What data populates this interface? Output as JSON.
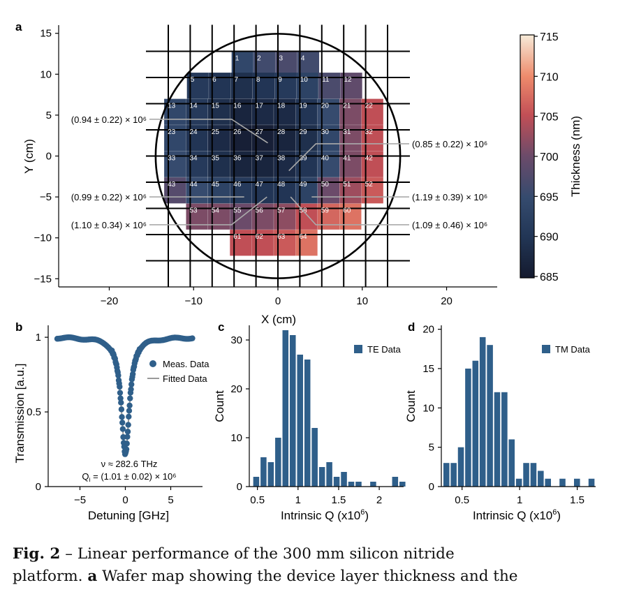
{
  "panel_labels": {
    "a": "a",
    "b": "b",
    "c": "c",
    "d": "d"
  },
  "caption": {
    "fig_label": "Fig. 2",
    "line1_rest": " – Linear performance of the 300 mm silicon nitride",
    "line2_pre": "platform. ",
    "line2_bold": "a",
    "line2_rest": " Wafer map showing the device layer thickness and the"
  },
  "colors": {
    "bar": "#2f5f8a",
    "fit_line": "#999999",
    "dots": "#2f5f8a"
  },
  "chart_data": [
    {
      "id": "a",
      "type": "heatmap",
      "xlabel": "X (cm)",
      "ylabel": "Y (cm)",
      "xlim": [
        -26,
        26
      ],
      "ylim": [
        -16,
        16
      ],
      "xticks": [
        -20,
        -10,
        0,
        10,
        20
      ],
      "yticks": [
        -15,
        -10,
        -5,
        0,
        5,
        10,
        15
      ],
      "xtick_labels": [
        "−20",
        "−10",
        "0",
        "10",
        "20"
      ],
      "ytick_labels": [
        "−15",
        "−10",
        "−5",
        "0",
        "5",
        "10",
        "15"
      ],
      "wafer_radius_cm": 14.5,
      "grid_x_cm": [
        -13,
        -10.4,
        -7.8,
        -5.2,
        -2.6,
        0,
        2.6,
        5.2,
        7.8,
        10.4,
        13
      ],
      "grid_y_cm": [
        12.8,
        9.6,
        6.4,
        3.2,
        0,
        -3.2,
        -6.4,
        -9.6,
        -12.8
      ],
      "colorbar": {
        "label": "Thickness (nm)",
        "min": 685,
        "max": 715,
        "ticks": [
          "715",
          "710",
          "705",
          "700",
          "695",
          "690",
          "685"
        ]
      },
      "rows": [
        {
          "y": 11.2,
          "xs": [
            -4.2,
            -1.6,
            1,
            3.6
          ],
          "start": 1,
          "values": [
            694,
            696,
            697,
            696
          ]
        },
        {
          "y": 8.6,
          "xs": [
            -9.5,
            -6.9,
            -4.3,
            -1.7,
            0.9,
            3.5,
            6.1,
            8.7
          ],
          "start": 5,
          "values": [
            691,
            690,
            689,
            690,
            691,
            693,
            697,
            699
          ]
        },
        {
          "y": 5.4,
          "xs": [
            -12.2,
            -9.6,
            -7,
            -4.4,
            -1.8,
            0.8,
            3.4,
            6,
            8.6,
            11.2
          ],
          "start": 13,
          "values": [
            694,
            691,
            689,
            687,
            688,
            688,
            690,
            695,
            701,
            705
          ]
        },
        {
          "y": 2.2,
          "xs": [
            -12.2,
            -9.6,
            -7,
            -4.4,
            -1.8,
            0.8,
            3.4,
            6,
            8.6,
            11.2
          ],
          "start": 23,
          "values": [
            694,
            690,
            688,
            686,
            686,
            687,
            689,
            694,
            701,
            705
          ]
        },
        {
          "y": -1,
          "xs": [
            -12.2,
            -9.6,
            -7,
            -4.4,
            -1.8,
            0.8,
            3.4,
            6,
            8.6,
            11.2
          ],
          "start": 33,
          "values": [
            695,
            691,
            689,
            687,
            687,
            688,
            690,
            695,
            701,
            705
          ]
        },
        {
          "y": -4.2,
          "xs": [
            -12.2,
            -9.6,
            -7,
            -4.4,
            -1.8,
            0.8,
            3.4,
            6,
            8.6,
            11.2
          ],
          "start": 43,
          "values": [
            698,
            695,
            693,
            691,
            690,
            690,
            693,
            700,
            703,
            706
          ]
        },
        {
          "y": -7.4,
          "xs": [
            -9.6,
            -7,
            -4.4,
            -1.8,
            0.8,
            3.4,
            6,
            8.6
          ],
          "start": 53,
          "values": [
            701,
            701,
            700,
            701,
            702,
            705,
            707,
            708
          ]
        },
        {
          "y": -10.6,
          "xs": [
            -4.4,
            -1.8,
            0.8,
            3.4
          ],
          "start": 61,
          "values": [
            705,
            705,
            706,
            708
          ]
        }
      ],
      "annotations": [
        {
          "text": "(0.94 ± 0.22) × 10⁶",
          "side": "left",
          "label_y": 4.5,
          "target": [
            -1.2,
            1.6
          ]
        },
        {
          "text": "(0.85 ± 0.22) × 10⁶",
          "side": "right",
          "label_y": 1.5,
          "target": [
            1.3,
            -1.8
          ]
        },
        {
          "text": "(0.99 ± 0.22) × 10⁶",
          "side": "left",
          "label_y": -5,
          "target": [
            -4,
            -5
          ]
        },
        {
          "text": "(1.19 ± 0.39) × 10⁶",
          "side": "right",
          "label_y": -5,
          "target": [
            4,
            -5
          ]
        },
        {
          "text": "(1.10 ± 0.34) × 10⁶",
          "side": "left",
          "label_y": -8.4,
          "target": [
            -1.3,
            -5
          ]
        },
        {
          "text": "(1.09 ± 0.46) × 10⁶",
          "side": "right",
          "label_y": -8.4,
          "target": [
            1.5,
            -5
          ]
        }
      ]
    },
    {
      "id": "b",
      "type": "scatter",
      "xlabel": "Detuning [GHz]",
      "ylabel": "Transmission [a.u.]",
      "xlim": [
        -8.5,
        8.5
      ],
      "ylim": [
        0,
        1.08
      ],
      "xticks": [
        -5,
        0,
        5
      ],
      "xtick_labels": [
        "−5",
        "0",
        "5"
      ],
      "yticks": [
        0,
        0.5,
        1
      ],
      "ytick_labels": [
        "0",
        "0.5",
        "1"
      ],
      "lorentzian": {
        "depth": 0.78,
        "half_width_ghz": 0.55,
        "x_range": [
          -7.5,
          7.5
        ]
      },
      "series": [
        {
          "name": "Meas. Data",
          "kind": "points"
        },
        {
          "name": "Fitted Data",
          "kind": "line"
        }
      ],
      "annot_line1": "ν ≈ 282.6 THz",
      "annot_q": "Q",
      "annot_q_sub": "i",
      "annot_q_rest": " = (1.01 ± 0.02) × 10⁶"
    },
    {
      "id": "c",
      "type": "bar",
      "xlabel": "Intrinsic Q (x10",
      "xlabel_sup": "6",
      "xlabel_end": ")",
      "ylabel": "Count",
      "xlim": [
        0.4,
        2.3
      ],
      "ylim": [
        0,
        33
      ],
      "xticks": [
        0.5,
        1,
        1.5,
        2
      ],
      "xtick_labels": [
        "0.5",
        "1",
        "1.5",
        "2"
      ],
      "yticks": [
        0,
        10,
        20,
        30
      ],
      "ytick_labels": [
        "0",
        "10",
        "20",
        "30"
      ],
      "bin_width": 0.0905,
      "bin_starts": [
        0.44,
        0.53,
        0.62,
        0.71,
        0.8,
        0.89,
        0.98,
        1.07,
        1.16,
        1.25,
        1.34,
        1.43,
        1.52,
        1.61,
        1.7,
        1.79,
        1.88,
        1.97,
        2.06,
        2.15,
        2.24
      ],
      "values": [
        2,
        6,
        5,
        10,
        32,
        31,
        27,
        26,
        12,
        4,
        5,
        2,
        3,
        1,
        1,
        0,
        1,
        0,
        0,
        2,
        1
      ],
      "series": [
        {
          "name": "TE Data"
        }
      ]
    },
    {
      "id": "d",
      "type": "bar",
      "xlabel": "Intrinsic Q (x10",
      "xlabel_sup": "6",
      "xlabel_end": ")",
      "ylabel": "Count",
      "xlim": [
        0.32,
        1.66
      ],
      "ylim": [
        0,
        20.5
      ],
      "xticks": [
        0.5,
        1,
        1.5
      ],
      "xtick_labels": [
        "0.5",
        "1",
        "1.5"
      ],
      "yticks": [
        0,
        5,
        10,
        15,
        20
      ],
      "ytick_labels": [
        "0",
        "5",
        "10",
        "15",
        "20"
      ],
      "bin_width": 0.064,
      "bin_starts": [
        0.332,
        0.395,
        0.458,
        0.521,
        0.584,
        0.647,
        0.71,
        0.773,
        0.836,
        0.899,
        0.962,
        1.025,
        1.088,
        1.151,
        1.214,
        1.277,
        1.34,
        1.403,
        1.466,
        1.529,
        1.592
      ],
      "values": [
        3,
        3,
        5,
        15,
        16,
        19,
        18,
        12,
        12,
        6,
        1,
        3,
        3,
        2,
        1,
        0,
        1,
        0,
        1,
        0,
        1
      ],
      "series": [
        {
          "name": "TM Data"
        }
      ]
    }
  ]
}
